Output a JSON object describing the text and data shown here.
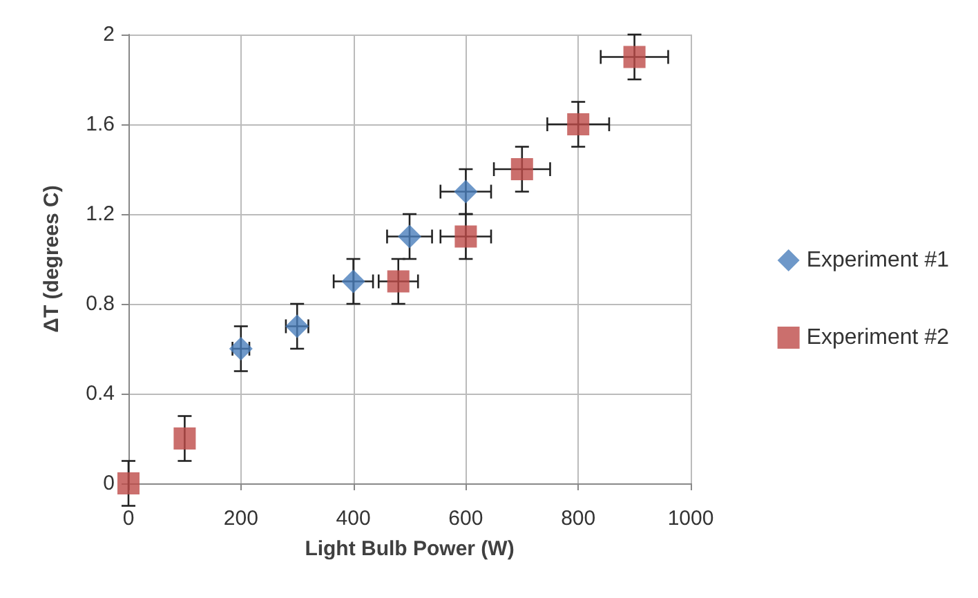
{
  "chart_data": {
    "type": "scatter",
    "xlabel": "Light Bulb Power (W)",
    "ylabel": "ΔT (degrees C)",
    "xlim": [
      0,
      1000
    ],
    "xticks": [
      0,
      200,
      400,
      600,
      800,
      1000
    ],
    "ylim": [
      0,
      2
    ],
    "yticks": [
      0,
      0.4,
      0.8,
      1.2,
      1.6,
      2
    ],
    "grid": true,
    "legend": "right",
    "series": [
      {
        "name": "Experiment #1",
        "color": "#4a7ebb",
        "marker": "diamond",
        "x": [
          200,
          300,
          400,
          500,
          600
        ],
        "values": [
          0.6,
          0.7,
          0.9,
          1.1,
          1.3
        ],
        "errors": [
          0.1,
          0.1,
          0.1,
          0.1,
          0.1
        ],
        "xerrors": [
          15,
          20,
          35,
          40,
          45
        ]
      },
      {
        "name": "Experiment #2",
        "color": "#be4b48",
        "marker": "square",
        "x": [
          0,
          100,
          480,
          600,
          700,
          800,
          900
        ],
        "values": [
          0,
          0.2,
          0.9,
          1.1,
          1.4,
          1.6,
          1.9
        ],
        "errors": [
          0.1,
          0.1,
          0.1,
          0.1,
          0.1,
          0.1,
          0.1
        ],
        "xerrors": [
          null,
          null,
          35,
          45,
          50,
          55,
          60
        ]
      }
    ]
  }
}
